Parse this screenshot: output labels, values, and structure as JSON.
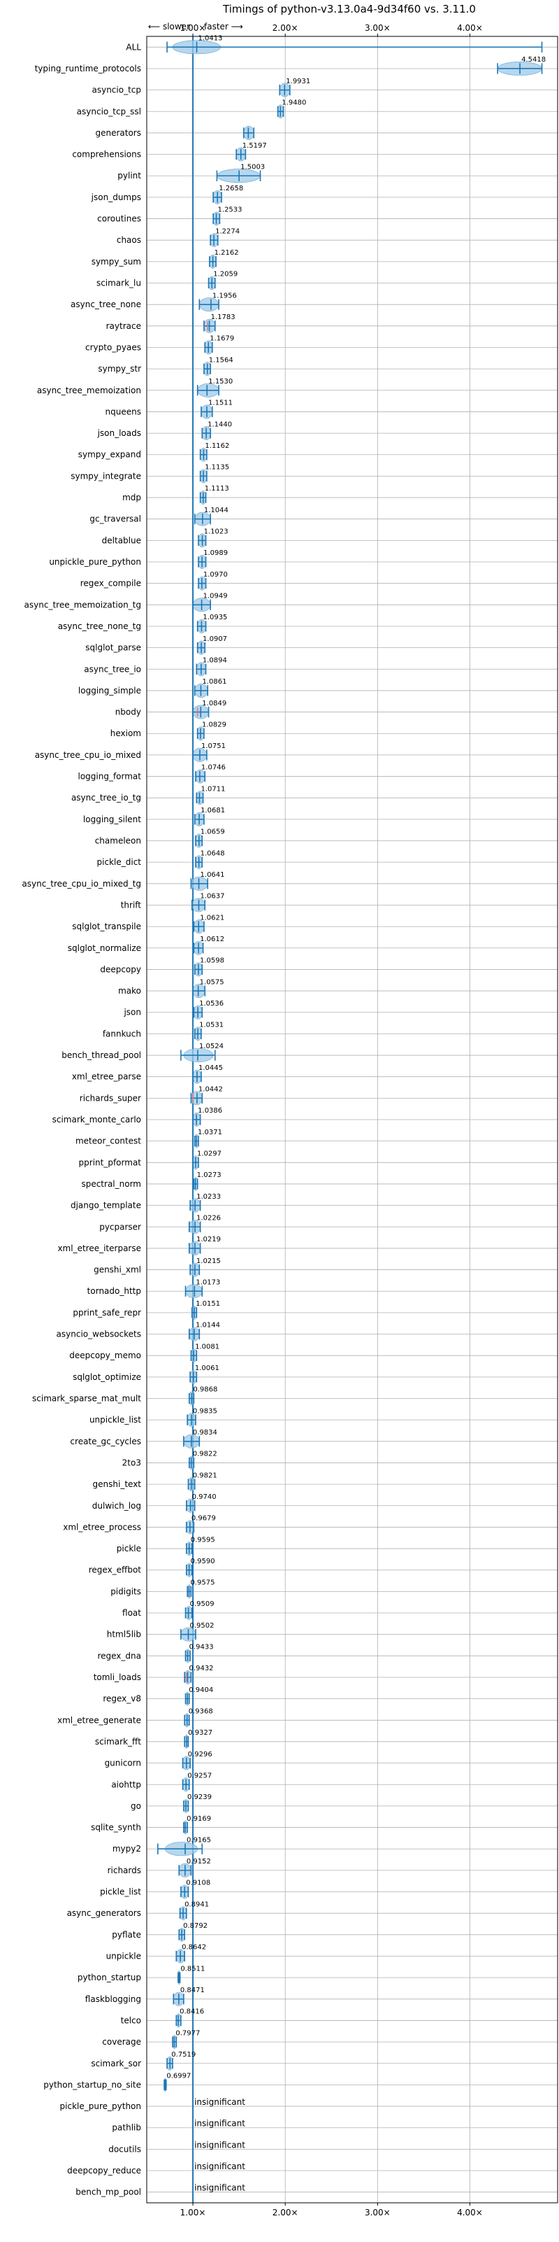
{
  "chart_data": {
    "type": "violin",
    "title": "Timings of python-v3.13.0a4-9d34f60 vs. 3.11.0",
    "direction_labels": {
      "slower": "⟵ slower",
      "faster": "faster ⟶"
    },
    "xlim": [
      0.5,
      4.95
    ],
    "xticks": [
      1,
      2,
      3,
      4
    ],
    "xtick_labels": [
      "1.00×",
      "2.00×",
      "3.00×",
      "4.00×"
    ],
    "grid": true,
    "reference_x": 1.0,
    "colors": {
      "violin": "#9ec9e8",
      "body": "#5fa3d6",
      "line": "#1f77b4",
      "slower_mark": "#e07b7b",
      "grid": "#b0b0b0"
    },
    "rows": [
      {
        "name": "ALL",
        "value": 1.0413,
        "label": "1.0413",
        "lo": 0.72,
        "hi": 4.78,
        "vlo": 0.78,
        "vhi": 1.3
      },
      {
        "name": "typing_runtime_protocols",
        "value": 4.5418,
        "label": "4.5418",
        "lo": 4.3,
        "hi": 4.78
      },
      {
        "name": "asyncio_tcp",
        "value": 1.9931,
        "label": "1.9931",
        "lo": 1.94,
        "hi": 2.05
      },
      {
        "name": "asyncio_tcp_ssl",
        "value": 1.948,
        "label": "1.9480",
        "lo": 1.92,
        "hi": 1.98
      },
      {
        "name": "generators",
        "value": 1.6,
        "label": "",
        "lo": 1.55,
        "hi": 1.66
      },
      {
        "name": "comprehensions",
        "value": 1.5197,
        "label": "1.5197",
        "lo": 1.47,
        "hi": 1.57
      },
      {
        "name": "pylint",
        "value": 1.5003,
        "label": "1.5003",
        "lo": 1.26,
        "hi": 1.73
      },
      {
        "name": "json_dumps",
        "value": 1.2658,
        "label": "1.2658",
        "lo": 1.22,
        "hi": 1.31
      },
      {
        "name": "coroutines",
        "value": 1.2533,
        "label": "1.2533",
        "lo": 1.22,
        "hi": 1.29
      },
      {
        "name": "chaos",
        "value": 1.2274,
        "label": "1.2274",
        "lo": 1.19,
        "hi": 1.27
      },
      {
        "name": "sympy_sum",
        "value": 1.2162,
        "label": "1.2162",
        "lo": 1.18,
        "hi": 1.25
      },
      {
        "name": "scimark_lu",
        "value": 1.2059,
        "label": "1.2059",
        "lo": 1.17,
        "hi": 1.24
      },
      {
        "name": "async_tree_none",
        "value": 1.1956,
        "label": "1.1956",
        "lo": 1.07,
        "hi": 1.28
      },
      {
        "name": "raytrace",
        "value": 1.1783,
        "label": "1.1783",
        "lo": 1.12,
        "hi": 1.24,
        "mark": 1.16
      },
      {
        "name": "crypto_pyaes",
        "value": 1.1679,
        "label": "1.1679",
        "lo": 1.13,
        "hi": 1.21
      },
      {
        "name": "sympy_str",
        "value": 1.1564,
        "label": "1.1564",
        "lo": 1.12,
        "hi": 1.19
      },
      {
        "name": "async_tree_memoization",
        "value": 1.153,
        "label": "1.1530",
        "lo": 1.05,
        "hi": 1.28
      },
      {
        "name": "nqueens",
        "value": 1.1511,
        "label": "1.1511",
        "lo": 1.09,
        "hi": 1.21
      },
      {
        "name": "json_loads",
        "value": 1.144,
        "label": "1.1440",
        "lo": 1.1,
        "hi": 1.19
      },
      {
        "name": "sympy_expand",
        "value": 1.1162,
        "label": "1.1162",
        "lo": 1.08,
        "hi": 1.15
      },
      {
        "name": "sympy_integrate",
        "value": 1.1135,
        "label": "1.1135",
        "lo": 1.08,
        "hi": 1.15
      },
      {
        "name": "mdp",
        "value": 1.1113,
        "label": "1.1113",
        "lo": 1.08,
        "hi": 1.14
      },
      {
        "name": "gc_traversal",
        "value": 1.1044,
        "label": "1.1044",
        "lo": 1.02,
        "hi": 1.19
      },
      {
        "name": "deltablue",
        "value": 1.1023,
        "label": "1.1023",
        "lo": 1.06,
        "hi": 1.14
      },
      {
        "name": "unpickle_pure_python",
        "value": 1.0989,
        "label": "1.0989",
        "lo": 1.06,
        "hi": 1.14
      },
      {
        "name": "regex_compile",
        "value": 1.097,
        "label": "1.0970",
        "lo": 1.06,
        "hi": 1.14
      },
      {
        "name": "async_tree_memoization_tg",
        "value": 1.0949,
        "label": "1.0949",
        "lo": 1.0,
        "hi": 1.19
      },
      {
        "name": "async_tree_none_tg",
        "value": 1.0935,
        "label": "1.0935",
        "lo": 1.05,
        "hi": 1.14
      },
      {
        "name": "sqlglot_parse",
        "value": 1.0907,
        "label": "1.0907",
        "lo": 1.05,
        "hi": 1.13
      },
      {
        "name": "async_tree_io",
        "value": 1.0894,
        "label": "1.0894",
        "lo": 1.04,
        "hi": 1.14
      },
      {
        "name": "logging_simple",
        "value": 1.0861,
        "label": "1.0861",
        "lo": 1.02,
        "hi": 1.16
      },
      {
        "name": "nbody",
        "value": 1.0849,
        "label": "1.0849",
        "lo": 1.0,
        "hi": 1.17,
        "mark": 1.05
      },
      {
        "name": "hexiom",
        "value": 1.0829,
        "label": "1.0829",
        "lo": 1.05,
        "hi": 1.12
      },
      {
        "name": "async_tree_cpu_io_mixed",
        "value": 1.0751,
        "label": "1.0751",
        "lo": 1.0,
        "hi": 1.15
      },
      {
        "name": "logging_format",
        "value": 1.0746,
        "label": "1.0746",
        "lo": 1.03,
        "hi": 1.13
      },
      {
        "name": "async_tree_io_tg",
        "value": 1.0711,
        "label": "1.0711",
        "lo": 1.04,
        "hi": 1.11
      },
      {
        "name": "logging_silent",
        "value": 1.0681,
        "label": "1.0681",
        "lo": 1.02,
        "hi": 1.12
      },
      {
        "name": "chameleon",
        "value": 1.0659,
        "label": "1.0659",
        "lo": 1.03,
        "hi": 1.1
      },
      {
        "name": "pickle_dict",
        "value": 1.0648,
        "label": "1.0648",
        "lo": 1.03,
        "hi": 1.1
      },
      {
        "name": "async_tree_cpu_io_mixed_tg",
        "value": 1.0641,
        "label": "1.0641",
        "lo": 0.98,
        "hi": 1.16
      },
      {
        "name": "thrift",
        "value": 1.0637,
        "label": "1.0637",
        "lo": 0.99,
        "hi": 1.13
      },
      {
        "name": "sqlglot_transpile",
        "value": 1.0621,
        "label": "1.0621",
        "lo": 1.01,
        "hi": 1.12
      },
      {
        "name": "sqlglot_normalize",
        "value": 1.0612,
        "label": "1.0612",
        "lo": 1.01,
        "hi": 1.11
      },
      {
        "name": "deepcopy",
        "value": 1.0598,
        "label": "1.0598",
        "lo": 1.02,
        "hi": 1.1
      },
      {
        "name": "mako",
        "value": 1.0575,
        "label": "1.0575",
        "lo": 1.0,
        "hi": 1.13
      },
      {
        "name": "json",
        "value": 1.0536,
        "label": "1.0536",
        "lo": 1.01,
        "hi": 1.1
      },
      {
        "name": "fannkuch",
        "value": 1.0531,
        "label": "1.0531",
        "lo": 1.02,
        "hi": 1.09
      },
      {
        "name": "bench_thread_pool",
        "value": 1.0524,
        "label": "1.0524",
        "lo": 0.87,
        "hi": 1.24,
        "vlo": 0.9,
        "vhi": 1.22
      },
      {
        "name": "xml_etree_parse",
        "value": 1.0445,
        "label": "1.0445",
        "lo": 1.0,
        "hi": 1.09
      },
      {
        "name": "richards_super",
        "value": 1.0442,
        "label": "1.0442",
        "lo": 0.98,
        "hi": 1.1,
        "mark": 1.0
      },
      {
        "name": "scimark_monte_carlo",
        "value": 1.0386,
        "label": "1.0386",
        "lo": 1.0,
        "hi": 1.08
      },
      {
        "name": "meteor_contest",
        "value": 1.0371,
        "label": "1.0371",
        "lo": 1.02,
        "hi": 1.06
      },
      {
        "name": "pprint_pformat",
        "value": 1.0297,
        "label": "1.0297",
        "lo": 1.0,
        "hi": 1.06
      },
      {
        "name": "spectral_norm",
        "value": 1.0273,
        "label": "1.0273",
        "lo": 1.01,
        "hi": 1.05
      },
      {
        "name": "django_template",
        "value": 1.0233,
        "label": "1.0233",
        "lo": 0.97,
        "hi": 1.08
      },
      {
        "name": "pycparser",
        "value": 1.0226,
        "label": "1.0226",
        "lo": 0.96,
        "hi": 1.08
      },
      {
        "name": "xml_etree_iterparse",
        "value": 1.0219,
        "label": "1.0219",
        "lo": 0.96,
        "hi": 1.08
      },
      {
        "name": "genshi_xml",
        "value": 1.0215,
        "label": "1.0215",
        "lo": 0.97,
        "hi": 1.07
      },
      {
        "name": "tornado_http",
        "value": 1.0173,
        "label": "1.0173",
        "lo": 0.92,
        "hi": 1.1
      },
      {
        "name": "pprint_safe_repr",
        "value": 1.0151,
        "label": "1.0151",
        "lo": 0.99,
        "hi": 1.04
      },
      {
        "name": "asyncio_websockets",
        "value": 1.0144,
        "label": "1.0144",
        "lo": 0.96,
        "hi": 1.07
      },
      {
        "name": "deepcopy_memo",
        "value": 1.0081,
        "label": "1.0081",
        "lo": 0.98,
        "hi": 1.04
      },
      {
        "name": "sqlglot_optimize",
        "value": 1.0061,
        "label": "1.0061",
        "lo": 0.97,
        "hi": 1.04
      },
      {
        "name": "scimark_sparse_mat_mult",
        "value": 0.9868,
        "label": "0.9868",
        "lo": 0.96,
        "hi": 1.01
      },
      {
        "name": "unpickle_list",
        "value": 0.9835,
        "label": "0.9835",
        "lo": 0.94,
        "hi": 1.03
      },
      {
        "name": "create_gc_cycles",
        "value": 0.9834,
        "label": "0.9834",
        "lo": 0.9,
        "hi": 1.07
      },
      {
        "name": "2to3",
        "value": 0.9822,
        "label": "0.9822",
        "lo": 0.96,
        "hi": 1.01
      },
      {
        "name": "genshi_text",
        "value": 0.9821,
        "label": "0.9821",
        "lo": 0.95,
        "hi": 1.02
      },
      {
        "name": "dulwich_log",
        "value": 0.974,
        "label": "0.9740",
        "lo": 0.93,
        "hi": 1.02
      },
      {
        "name": "xml_etree_process",
        "value": 0.9679,
        "label": "0.9679",
        "lo": 0.93,
        "hi": 1.01
      },
      {
        "name": "pickle",
        "value": 0.9595,
        "label": "0.9595",
        "lo": 0.93,
        "hi": 0.99
      },
      {
        "name": "regex_effbot",
        "value": 0.959,
        "label": "0.9590",
        "lo": 0.93,
        "hi": 0.99
      },
      {
        "name": "pidigits",
        "value": 0.9575,
        "label": "0.9575",
        "lo": 0.94,
        "hi": 0.98
      },
      {
        "name": "float",
        "value": 0.9509,
        "label": "0.9509",
        "lo": 0.92,
        "hi": 0.99
      },
      {
        "name": "html5lib",
        "value": 0.9502,
        "label": "0.9502",
        "lo": 0.87,
        "hi": 1.03
      },
      {
        "name": "regex_dna",
        "value": 0.9433,
        "label": "0.9433",
        "lo": 0.92,
        "hi": 0.97
      },
      {
        "name": "tomli_loads",
        "value": 0.9432,
        "label": "0.9432",
        "lo": 0.91,
        "hi": 0.98,
        "mark": 0.93
      },
      {
        "name": "regex_v8",
        "value": 0.9404,
        "label": "0.9404",
        "lo": 0.92,
        "hi": 0.96
      },
      {
        "name": "xml_etree_generate",
        "value": 0.9368,
        "label": "0.9368",
        "lo": 0.91,
        "hi": 0.96
      },
      {
        "name": "scimark_fft",
        "value": 0.9327,
        "label": "0.9327",
        "lo": 0.91,
        "hi": 0.95
      },
      {
        "name": "gunicorn",
        "value": 0.9296,
        "label": "0.9296",
        "lo": 0.89,
        "hi": 0.97
      },
      {
        "name": "aiohttp",
        "value": 0.9257,
        "label": "0.9257",
        "lo": 0.89,
        "hi": 0.96
      },
      {
        "name": "go",
        "value": 0.9239,
        "label": "0.9239",
        "lo": 0.9,
        "hi": 0.95
      },
      {
        "name": "sqlite_synth",
        "value": 0.9169,
        "label": "0.9169",
        "lo": 0.9,
        "hi": 0.94
      },
      {
        "name": "mypy2",
        "value": 0.9165,
        "label": "0.9165",
        "lo": 0.62,
        "hi": 1.1,
        "vlo": 0.7,
        "vhi": 1.05
      },
      {
        "name": "richards",
        "value": 0.9152,
        "label": "0.9152",
        "lo": 0.85,
        "hi": 0.98
      },
      {
        "name": "pickle_list",
        "value": 0.9108,
        "label": "0.9108",
        "lo": 0.87,
        "hi": 0.95
      },
      {
        "name": "async_generators",
        "value": 0.8941,
        "label": "0.8941",
        "lo": 0.86,
        "hi": 0.93
      },
      {
        "name": "pyflate",
        "value": 0.8792,
        "label": "0.8792",
        "lo": 0.85,
        "hi": 0.91
      },
      {
        "name": "unpickle",
        "value": 0.8642,
        "label": "0.8642",
        "lo": 0.82,
        "hi": 0.91
      },
      {
        "name": "python_startup",
        "value": 0.8511,
        "label": "0.8511",
        "lo": 0.84,
        "hi": 0.86
      },
      {
        "name": "flaskblogging",
        "value": 0.8471,
        "label": "0.8471",
        "lo": 0.79,
        "hi": 0.9
      },
      {
        "name": "telco",
        "value": 0.8416,
        "label": "0.8416",
        "lo": 0.82,
        "hi": 0.87
      },
      {
        "name": "coverage",
        "value": 0.7977,
        "label": "0.7977",
        "lo": 0.78,
        "hi": 0.82
      },
      {
        "name": "scimark_sor",
        "value": 0.7519,
        "label": "0.7519",
        "lo": 0.72,
        "hi": 0.78
      },
      {
        "name": "python_startup_no_site",
        "value": 0.6997,
        "label": "0.6997",
        "lo": 0.69,
        "hi": 0.71
      },
      {
        "name": "pickle_pure_python",
        "value": null,
        "label": "insignificant"
      },
      {
        "name": "pathlib",
        "value": null,
        "label": "insignificant"
      },
      {
        "name": "docutils",
        "value": null,
        "label": "insignificant"
      },
      {
        "name": "deepcopy_reduce",
        "value": null,
        "label": "insignificant"
      },
      {
        "name": "bench_mp_pool",
        "value": null,
        "label": "insignificant"
      }
    ]
  }
}
